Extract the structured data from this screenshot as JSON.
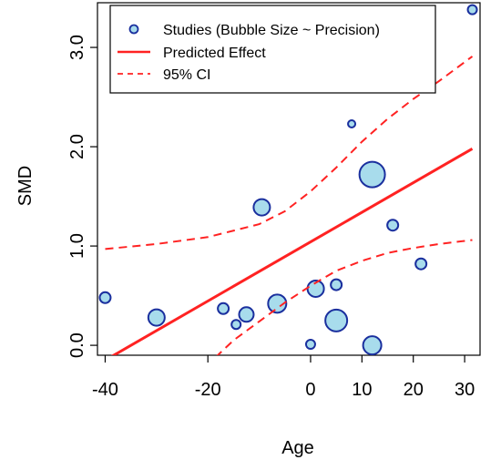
{
  "chart_data": {
    "type": "scatter",
    "title": "",
    "xlabel": "Age",
    "ylabel": "SMD",
    "xlim": [
      -41.5,
      33
    ],
    "ylim": [
      -0.1,
      3.45
    ],
    "xticks": [
      -40,
      -20,
      0,
      10,
      20,
      30
    ],
    "xtick_labels": [
      "-40",
      "-20",
      "0",
      "10",
      "20",
      "30"
    ],
    "yticks": [
      0,
      1,
      2,
      3
    ],
    "ytick_labels": [
      "0.0",
      "1.0",
      "2.0",
      "3.0"
    ],
    "grid": false,
    "legend_position": "top",
    "legend": [
      {
        "label": "Studies (Bubble Size ~ Precision)",
        "kind": "bubble"
      },
      {
        "label": "Predicted Effect",
        "kind": "solid-line"
      },
      {
        "label": "95% CI",
        "kind": "dashed-line"
      }
    ],
    "colors": {
      "bubble_fill": "#a8dcec",
      "bubble_edge": "#1a2f9e",
      "line": "#ff2222"
    },
    "series": [
      {
        "name": "Studies (Bubble Size ~ Precision)",
        "kind": "bubble",
        "points": [
          {
            "x": -40,
            "y": 0.48,
            "r": 6
          },
          {
            "x": -30,
            "y": 0.28,
            "r": 9
          },
          {
            "x": -17,
            "y": 0.37,
            "r": 6
          },
          {
            "x": -14.5,
            "y": 0.21,
            "r": 5
          },
          {
            "x": -12.5,
            "y": 0.31,
            "r": 8
          },
          {
            "x": -9.5,
            "y": 1.39,
            "r": 9
          },
          {
            "x": -6.5,
            "y": 0.42,
            "r": 10
          },
          {
            "x": 0,
            "y": 0.01,
            "r": 5
          },
          {
            "x": 1,
            "y": 0.57,
            "r": 9
          },
          {
            "x": 5,
            "y": 0.25,
            "r": 12
          },
          {
            "x": 5,
            "y": 0.61,
            "r": 6
          },
          {
            "x": 8,
            "y": 2.23,
            "r": 4
          },
          {
            "x": 12,
            "y": 1.72,
            "r": 14
          },
          {
            "x": 12,
            "y": 0.0,
            "r": 10
          },
          {
            "x": 16,
            "y": 1.21,
            "r": 6
          },
          {
            "x": 21.5,
            "y": 0.82,
            "r": 6
          },
          {
            "x": 31.5,
            "y": 3.38,
            "r": 5
          }
        ]
      },
      {
        "name": "Predicted Effect",
        "kind": "line",
        "x": [
          -39,
          31.5
        ],
        "y": [
          -0.12,
          1.98
        ]
      },
      {
        "name": "95% CI",
        "kind": "ci",
        "upper": {
          "x": [
            -40,
            -30,
            -20,
            -10,
            -5,
            0,
            5,
            10,
            15,
            20,
            25,
            31.5
          ],
          "y": [
            0.97,
            1.02,
            1.09,
            1.22,
            1.35,
            1.55,
            1.79,
            2.05,
            2.28,
            2.48,
            2.66,
            2.91
          ]
        },
        "lower": {
          "x": [
            -18.5,
            -15,
            -10,
            -5,
            0,
            5,
            10,
            15,
            20,
            25,
            31.5
          ],
          "y": [
            -0.12,
            0.05,
            0.24,
            0.43,
            0.6,
            0.75,
            0.85,
            0.93,
            0.98,
            1.02,
            1.06
          ]
        }
      }
    ]
  }
}
